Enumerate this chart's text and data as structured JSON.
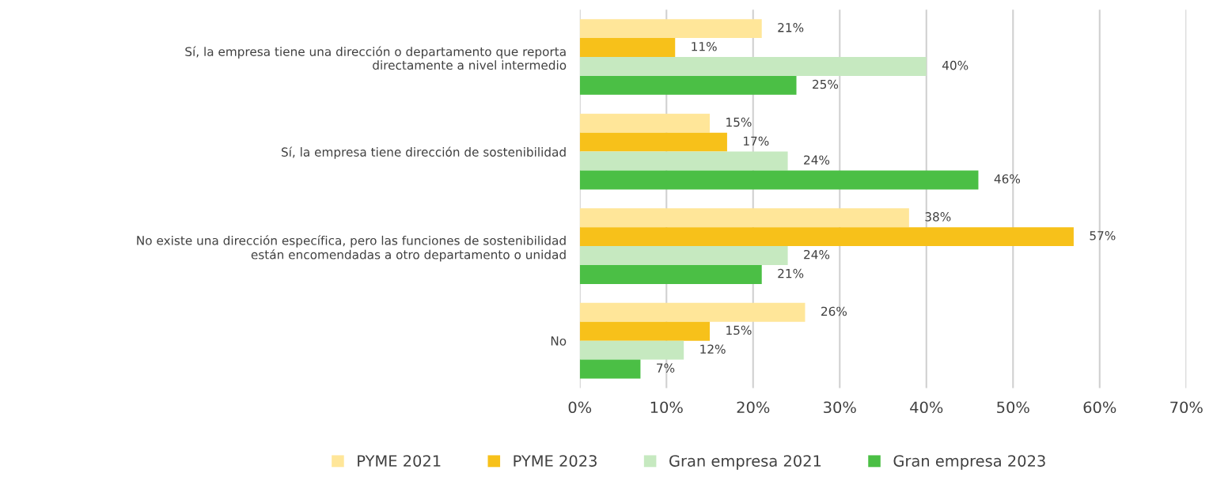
{
  "chart_data": {
    "type": "bar",
    "orientation": "horizontal",
    "categories": [
      "Sí, la empresa tiene una dirección o departamento que reporta\ndirectamente a nivel intermedio",
      "Sí, la empresa tiene dirección de sostenibilidad",
      "No existe una dirección específica, pero las funciones de sostenibilidad\nestán encomendadas a otro departamento o unidad",
      "No"
    ],
    "series": [
      {
        "name": "PYME 2021",
        "color": "#ffe699",
        "values": [
          21,
          15,
          38,
          26
        ],
        "value_labels": [
          "21%",
          "15%",
          "38%",
          "26%"
        ]
      },
      {
        "name": "PYME 2023",
        "color": "#f7c11a",
        "values": [
          11,
          17,
          57,
          15
        ],
        "value_labels": [
          "11%",
          "17%",
          "57%",
          "15%"
        ]
      },
      {
        "name": "Gran empresa 2021",
        "color": "#c6e9c0",
        "values": [
          40,
          24,
          24,
          12
        ],
        "value_labels": [
          "40%",
          "24%",
          "24%",
          "12%"
        ]
      },
      {
        "name": "Gran empresa 2023",
        "color": "#4bbf45",
        "values": [
          25,
          46,
          21,
          7
        ],
        "value_labels": [
          "25%",
          "46%",
          "21%",
          "7%"
        ]
      }
    ],
    "xlim": [
      0,
      70
    ],
    "xticks": [
      {
        "value": 0,
        "label": "0%"
      },
      {
        "value": 10,
        "label": "10%"
      },
      {
        "value": 20,
        "label": "20%"
      },
      {
        "value": 30,
        "label": "30%"
      },
      {
        "value": 40,
        "label": "40%"
      },
      {
        "value": 50,
        "label": "50%"
      },
      {
        "value": 60,
        "label": "60%"
      },
      {
        "value": 70,
        "label": "70%"
      }
    ],
    "grid": "x",
    "legend": "bottom"
  }
}
